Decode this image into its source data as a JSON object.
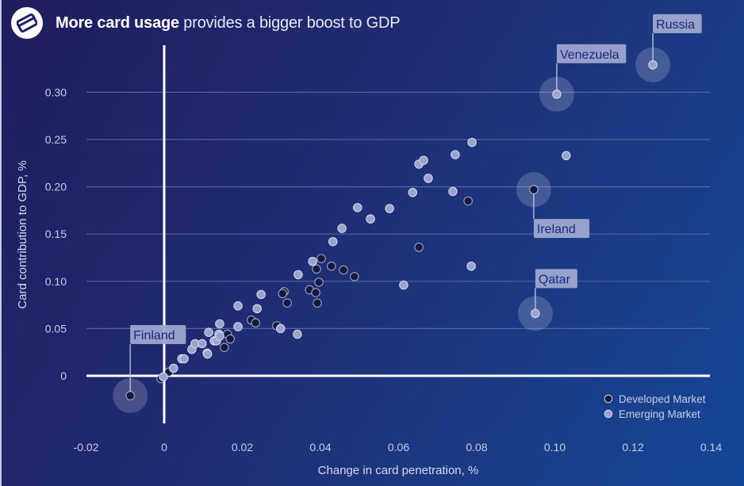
{
  "header": {
    "icon": "credit-card-icon",
    "title_bold": "More card usage",
    "title_rest": " provides a bigger boost to GDP"
  },
  "colors": {
    "developed": "#141a3f",
    "emerging": "#9aa3cc",
    "point_stroke": "#d4d8ee",
    "gridline": "#5a68a8",
    "axis": "#ffffff",
    "callout_bg": "#9da6d0",
    "callout_text": "#1b2a7a"
  },
  "chart_data": {
    "type": "scatter",
    "title": "More card usage provides a bigger boost to GDP",
    "xlabel": "Change in card penetration, %",
    "ylabel": "Card contribution to GDP, %",
    "xlim": [
      -0.02,
      0.14
    ],
    "ylim": [
      -0.03,
      0.34
    ],
    "x_ticks": [
      {
        "value": -0.02,
        "label": "-0.02"
      },
      {
        "value": 0,
        "label": "0"
      },
      {
        "value": 0.02,
        "label": "0.02"
      },
      {
        "value": 0.04,
        "label": "0.04"
      },
      {
        "value": 0.06,
        "label": "0.06"
      },
      {
        "value": 0.08,
        "label": "0.08"
      },
      {
        "value": 0.1,
        "label": "0.10"
      },
      {
        "value": 0.12,
        "label": "0.12"
      },
      {
        "value": 0.14,
        "label": "0.14"
      }
    ],
    "y_ticks": [
      {
        "value": 0,
        "label": "0"
      },
      {
        "value": 0.05,
        "label": "0.05"
      },
      {
        "value": 0.1,
        "label": "0.10"
      },
      {
        "value": 0.15,
        "label": "0.15"
      },
      {
        "value": 0.2,
        "label": "0.20"
      },
      {
        "value": 0.25,
        "label": "0.25"
      },
      {
        "value": 0.3,
        "label": "0.30"
      }
    ],
    "grid": "horizontal",
    "legend": {
      "position": "bottom-right",
      "entries": [
        {
          "name": "Developed Market",
          "series": "developed"
        },
        {
          "name": "Emerging Market",
          "series": "emerging"
        }
      ]
    },
    "series": [
      {
        "name": "Developed Market",
        "key": "developed",
        "points": [
          [
            -0.0087,
            -0.021
          ],
          [
            -0.0008,
            -0.003
          ],
          [
            0.0012,
            0.004
          ],
          [
            0.0162,
            0.044
          ],
          [
            0.0169,
            0.039
          ],
          [
            0.0154,
            0.03
          ],
          [
            0.0223,
            0.059
          ],
          [
            0.0234,
            0.056
          ],
          [
            0.0288,
            0.053
          ],
          [
            0.0307,
            0.089
          ],
          [
            0.0303,
            0.087
          ],
          [
            0.0315,
            0.077
          ],
          [
            0.0372,
            0.091
          ],
          [
            0.0388,
            0.088
          ],
          [
            0.0392,
            0.077
          ],
          [
            0.0396,
            0.099
          ],
          [
            0.039,
            0.113
          ],
          [
            0.0402,
            0.124
          ],
          [
            0.0428,
            0.116
          ],
          [
            0.0459,
            0.112
          ],
          [
            0.0487,
            0.105
          ],
          [
            0.0652,
            0.136
          ],
          [
            0.0778,
            0.185
          ],
          [
            0.0946,
            0.197
          ]
        ]
      },
      {
        "name": "Emerging Market",
        "key": "emerging",
        "points": [
          [
            -0.0002,
            -0.001
          ],
          [
            0.0024,
            0.008
          ],
          [
            0.0045,
            0.018
          ],
          [
            0.0051,
            0.018
          ],
          [
            0.0071,
            0.028
          ],
          [
            0.0079,
            0.034
          ],
          [
            0.0097,
            0.034
          ],
          [
            0.011,
            0.024
          ],
          [
            0.0111,
            0.023
          ],
          [
            0.0114,
            0.046
          ],
          [
            0.0128,
            0.037
          ],
          [
            0.0134,
            0.037
          ],
          [
            0.014,
            0.044
          ],
          [
            0.0142,
            0.042
          ],
          [
            0.0142,
            0.055
          ],
          [
            0.0189,
            0.074
          ],
          [
            0.0189,
            0.052
          ],
          [
            0.0238,
            0.071
          ],
          [
            0.0248,
            0.086
          ],
          [
            0.0298,
            0.05
          ],
          [
            0.0341,
            0.044
          ],
          [
            0.0343,
            0.107
          ],
          [
            0.038,
            0.121
          ],
          [
            0.0432,
            0.142
          ],
          [
            0.0455,
            0.156
          ],
          [
            0.0495,
            0.178
          ],
          [
            0.0528,
            0.166
          ],
          [
            0.0577,
            0.177
          ],
          [
            0.0613,
            0.096
          ],
          [
            0.0636,
            0.194
          ],
          [
            0.0652,
            0.224
          ],
          [
            0.0664,
            0.228
          ],
          [
            0.0676,
            0.209
          ],
          [
            0.0739,
            0.195
          ],
          [
            0.0745,
            0.234
          ],
          [
            0.0788,
            0.247
          ],
          [
            0.0786,
            0.116
          ],
          [
            0.095,
            0.066
          ],
          [
            0.1005,
            0.298
          ],
          [
            0.1029,
            0.233
          ],
          [
            0.1251,
            0.329
          ]
        ]
      }
    ],
    "annotations": [
      {
        "label": "Russia",
        "x": 0.1251,
        "y": 0.329,
        "series": "emerging",
        "placement": "above"
      },
      {
        "label": "Venezuela",
        "x": 0.1005,
        "y": 0.298,
        "series": "emerging",
        "placement": "above"
      },
      {
        "label": "Ireland",
        "x": 0.0946,
        "y": 0.197,
        "series": "developed",
        "placement": "below"
      },
      {
        "label": "Qatar",
        "x": 0.095,
        "y": 0.066,
        "series": "emerging",
        "placement": "above"
      },
      {
        "label": "Finland",
        "x": -0.0087,
        "y": -0.021,
        "series": "developed",
        "placement": "above"
      }
    ]
  }
}
